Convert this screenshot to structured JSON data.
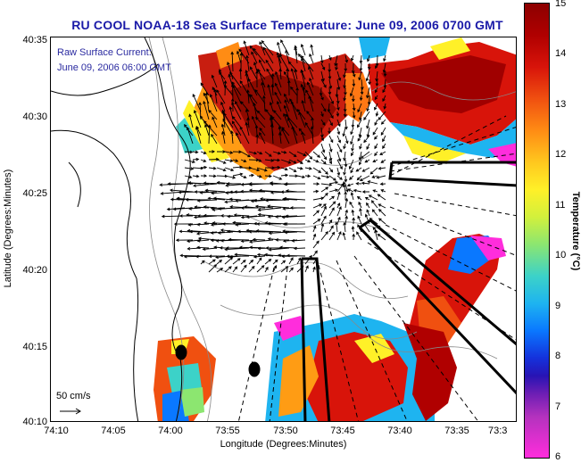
{
  "title": "RU COOL  NOAA-18  Sea Surface Temperature:  June 09, 2006 0700 GMT",
  "overlay": {
    "line1": "Raw Surface Current:",
    "line2": "June 09, 2006 06:00 GMT"
  },
  "axes": {
    "xlabel": "Longitude (Degrees:Minutes)",
    "ylabel": "Latitude (Degrees:Minutes)",
    "xticks": [
      "74:10",
      "74:05",
      "74:00",
      "73:55",
      "73:50",
      "73:45",
      "73:40",
      "73:35",
      "73:3"
    ],
    "yticks": [
      "40:35",
      "40:30",
      "40:25",
      "40:20",
      "40:15",
      "40:10"
    ]
  },
  "scale_vector": {
    "label": "50 cm/s"
  },
  "colorbar": {
    "label": "Temperature (°C)",
    "ticks": [
      "15",
      "14",
      "13",
      "12",
      "11",
      "10",
      "9",
      "8",
      "7",
      "6"
    ],
    "range": [
      6,
      15
    ]
  },
  "colors": {
    "title": "#1a1aa8",
    "overlay_text": "#2a2aa0",
    "land_line": "#000000",
    "bathymetry": "#888888"
  }
}
